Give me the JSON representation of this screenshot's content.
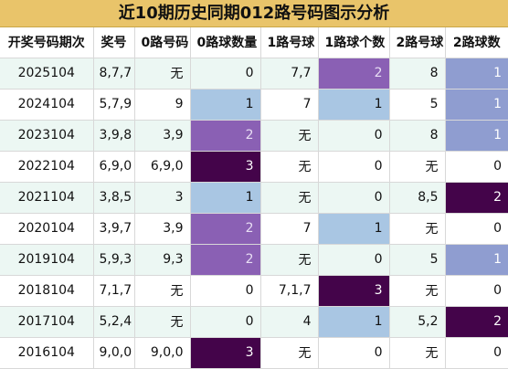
{
  "title": "近10期历史同期012路号码图示分析",
  "headers": [
    "开奖号码期次",
    "奖号",
    "0路号码",
    "0路球数量",
    "1路号球",
    "1路球个数",
    "2路号球",
    "2路球数"
  ],
  "rows": [
    {
      "period": "2025104",
      "award": "8,7,7",
      "r0": "无",
      "r0c": 0,
      "r1": "7,7",
      "r1c": 2,
      "r2": "8",
      "r2c": 1
    },
    {
      "period": "2024104",
      "award": "5,7,9",
      "r0": "9",
      "r0c": 1,
      "r1": "7",
      "r1c": 1,
      "r2": "5",
      "r2c": 1
    },
    {
      "period": "2023104",
      "award": "3,9,8",
      "r0": "3,9",
      "r0c": 2,
      "r1": "无",
      "r1c": 0,
      "r2": "8",
      "r2c": 1
    },
    {
      "period": "2022104",
      "award": "6,9,0",
      "r0": "6,9,0",
      "r0c": 3,
      "r1": "无",
      "r1c": 0,
      "r2": "无",
      "r2c": 0
    },
    {
      "period": "2021104",
      "award": "3,8,5",
      "r0": "3",
      "r0c": 1,
      "r1": "无",
      "r1c": 0,
      "r2": "8,5",
      "r2c": 2
    },
    {
      "period": "2020104",
      "award": "3,9,7",
      "r0": "3,9",
      "r0c": 2,
      "r1": "7",
      "r1c": 1,
      "r2": "无",
      "r2c": 0
    },
    {
      "period": "2019104",
      "award": "5,9,3",
      "r0": "9,3",
      "r0c": 2,
      "r1": "无",
      "r1c": 0,
      "r2": "5",
      "r2c": 1
    },
    {
      "period": "2018104",
      "award": "7,1,7",
      "r0": "无",
      "r0c": 0,
      "r1": "7,1,7",
      "r1c": 3,
      "r2": "无",
      "r2c": 0
    },
    {
      "period": "2017104",
      "award": "5,2,4",
      "r0": "无",
      "r0c": 0,
      "r1": "4",
      "r1c": 1,
      "r2": "5,2",
      "r2c": 2
    },
    {
      "period": "2016104",
      "award": "9,0,0",
      "r0": "9,0,0",
      "r0c": 3,
      "r1": "无",
      "r1c": 0,
      "r2": "无",
      "r2c": 0
    }
  ]
}
